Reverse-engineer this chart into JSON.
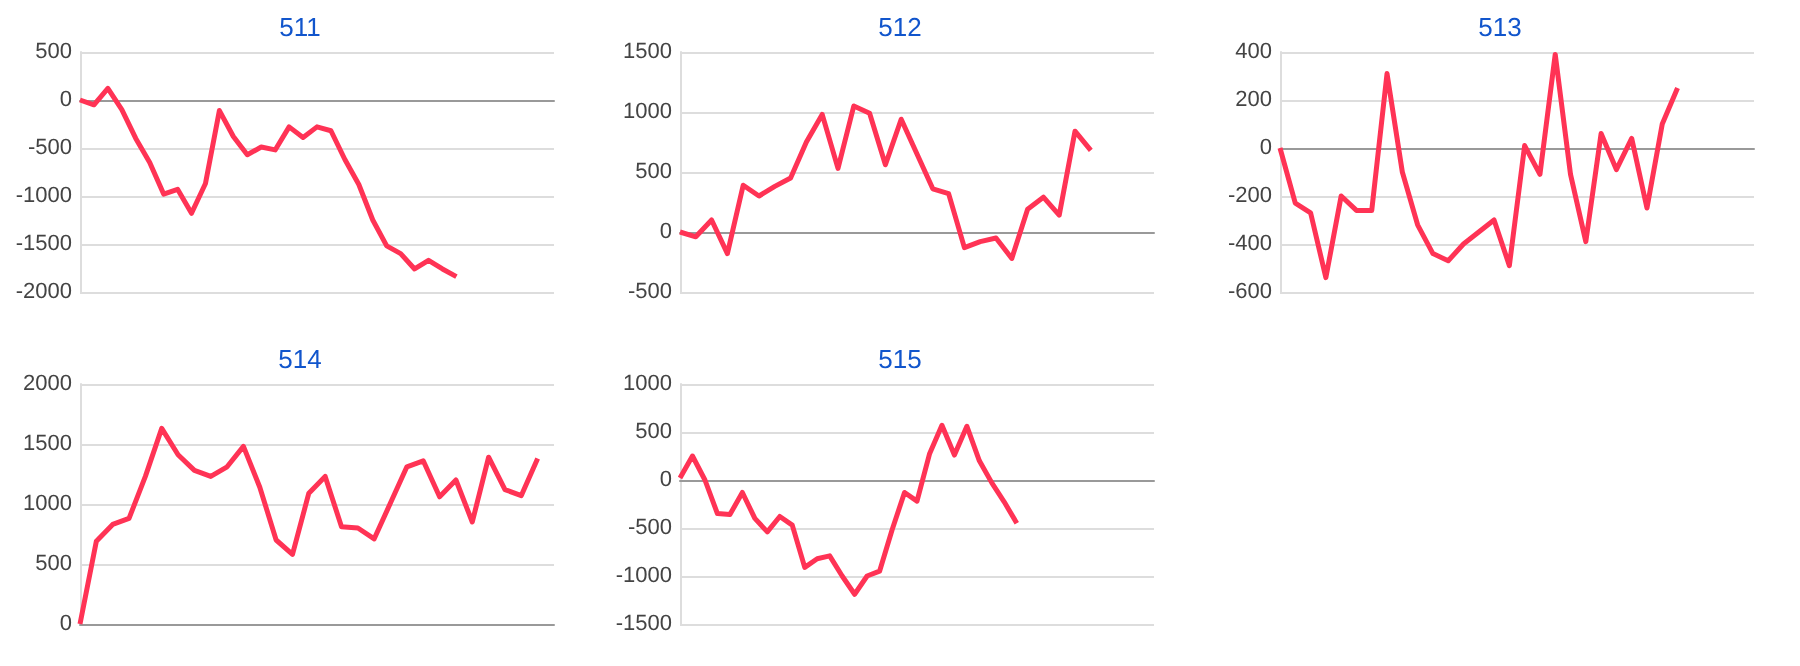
{
  "chart_data": [
    {
      "type": "line",
      "title": "511",
      "categories": [
        null,
        null,
        null,
        null,
        null,
        null,
        null,
        null,
        null,
        null,
        null,
        null,
        null,
        null,
        null,
        null,
        null,
        null,
        null,
        null,
        null,
        null,
        null,
        null,
        null,
        null,
        null,
        null,
        null,
        null,
        null,
        null,
        null,
        null,
        null
      ],
      "values": [
        0,
        -50,
        120,
        -100,
        -400,
        -650,
        -980,
        -930,
        -1180,
        -870,
        -110,
        -380,
        -570,
        -490,
        -520,
        -280,
        -390,
        -280,
        -320,
        -620,
        -880,
        -1250,
        -1520,
        -1600,
        -1760,
        -1670,
        -1760,
        -1840,
        null,
        null,
        null,
        null,
        null,
        null,
        null
      ],
      "color": "#ff3355",
      "ylim": [
        -2000,
        500
      ],
      "yticks": [
        -2000,
        -1500,
        -1000,
        -500,
        0,
        500
      ],
      "grid": "y",
      "marker": "none"
    },
    {
      "type": "line",
      "title": "512",
      "categories": [
        null,
        null,
        null,
        null,
        null,
        null,
        null,
        null,
        null,
        null,
        null,
        null,
        null,
        null,
        null,
        null,
        null,
        null,
        null,
        null,
        null,
        null,
        null,
        null,
        null,
        null,
        null,
        null,
        null,
        null,
        null
      ],
      "values": [
        0,
        -40,
        100,
        -180,
        390,
        300,
        380,
        450,
        750,
        980,
        530,
        1050,
        990,
        560,
        940,
        650,
        360,
        320,
        -130,
        -80,
        -50,
        -220,
        190,
        290,
        140,
        840,
        680,
        null,
        null,
        null,
        null
      ],
      "color": "#ff3355",
      "ylim": [
        -500,
        1500
      ],
      "yticks": [
        -500,
        0,
        500,
        1000,
        1500
      ],
      "grid": "y",
      "marker": "none"
    },
    {
      "type": "line",
      "title": "513",
      "categories": [
        null,
        null,
        null,
        null,
        null,
        null,
        null,
        null,
        null,
        null,
        null,
        null,
        null,
        null,
        null,
        null,
        null,
        null,
        null,
        null,
        null,
        null,
        null,
        null,
        null,
        null,
        null,
        null,
        null,
        null,
        null,
        null
      ],
      "values": [
        0,
        -230,
        -270,
        -540,
        -200,
        -260,
        -260,
        310,
        -100,
        -320,
        -440,
        -470,
        -400,
        -350,
        -300,
        -490,
        10,
        -110,
        390,
        -110,
        -390,
        60,
        -90,
        40,
        -250,
        100,
        250,
        null,
        null,
        null,
        null,
        null
      ],
      "color": "#ff3355",
      "ylim": [
        -600,
        400
      ],
      "yticks": [
        -600,
        -400,
        -200,
        0,
        200,
        400
      ],
      "grid": "y",
      "marker": "none"
    },
    {
      "type": "line",
      "title": "514",
      "categories": [
        null,
        null,
        null,
        null,
        null,
        null,
        null,
        null,
        null,
        null,
        null,
        null,
        null,
        null,
        null,
        null,
        null,
        null,
        null,
        null,
        null,
        null,
        null,
        null,
        null,
        null,
        null,
        null,
        null,
        null
      ],
      "values": [
        0,
        690,
        830,
        880,
        1230,
        1630,
        1410,
        1280,
        1230,
        1310,
        1480,
        1140,
        700,
        580,
        1090,
        1230,
        810,
        800,
        710,
        1010,
        1310,
        1360,
        1060,
        1200,
        850,
        1390,
        1120,
        1070,
        1380,
        null
      ],
      "color": "#ff3355",
      "ylim": [
        0,
        2000
      ],
      "yticks": [
        0,
        500,
        1000,
        1500,
        2000
      ],
      "grid": "y",
      "marker": "none"
    },
    {
      "type": "line",
      "title": "515",
      "categories": [
        null,
        null,
        null,
        null,
        null,
        null,
        null,
        null,
        null,
        null,
        null,
        null,
        null,
        null,
        null,
        null,
        null,
        null,
        null,
        null,
        null,
        null,
        null,
        null,
        null,
        null,
        null,
        null,
        null,
        null,
        null,
        null,
        null,
        null,
        null,
        null,
        null,
        null,
        null
      ],
      "values": [
        20,
        250,
        0,
        -350,
        -360,
        -130,
        -400,
        -540,
        -380,
        -470,
        -910,
        -820,
        -790,
        -1000,
        -1190,
        -1000,
        -950,
        -520,
        -130,
        -220,
        270,
        570,
        260,
        560,
        200,
        -30,
        -230,
        -450,
        null,
        null,
        null,
        null,
        null,
        null,
        null,
        null,
        null,
        null,
        null
      ],
      "color": "#ff3355",
      "ylim": [
        -1500,
        1000
      ],
      "yticks": [
        -1500,
        -1000,
        -500,
        0,
        500,
        1000
      ],
      "grid": "y",
      "marker": "none"
    }
  ]
}
